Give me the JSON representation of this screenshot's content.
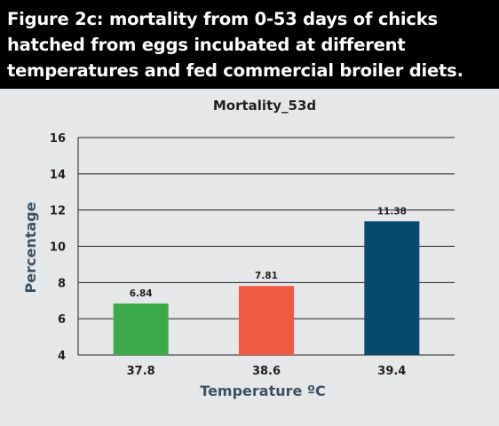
{
  "figure": {
    "caption": "Figure 2c: mortality from 0-53 days of chicks hatched from eggs incubated at different temperatures and fed commercial broiler diets."
  },
  "chart_data": {
    "type": "bar",
    "title": "Mortality_53d",
    "xlabel": "Temperature ºC",
    "ylabel": "Percentage",
    "categories": [
      "37.8",
      "38.6",
      "39.4"
    ],
    "values": [
      6.84,
      7.81,
      11.38
    ],
    "data_labels": [
      "6.84",
      "7.81",
      "11.38"
    ],
    "colors": [
      "#3bab4a",
      "#ee5a42",
      "#064b6b"
    ],
    "ylim": [
      4,
      16
    ],
    "yticks": [
      4,
      6,
      8,
      10,
      12,
      14,
      16
    ],
    "grid": true,
    "legend": "none"
  }
}
